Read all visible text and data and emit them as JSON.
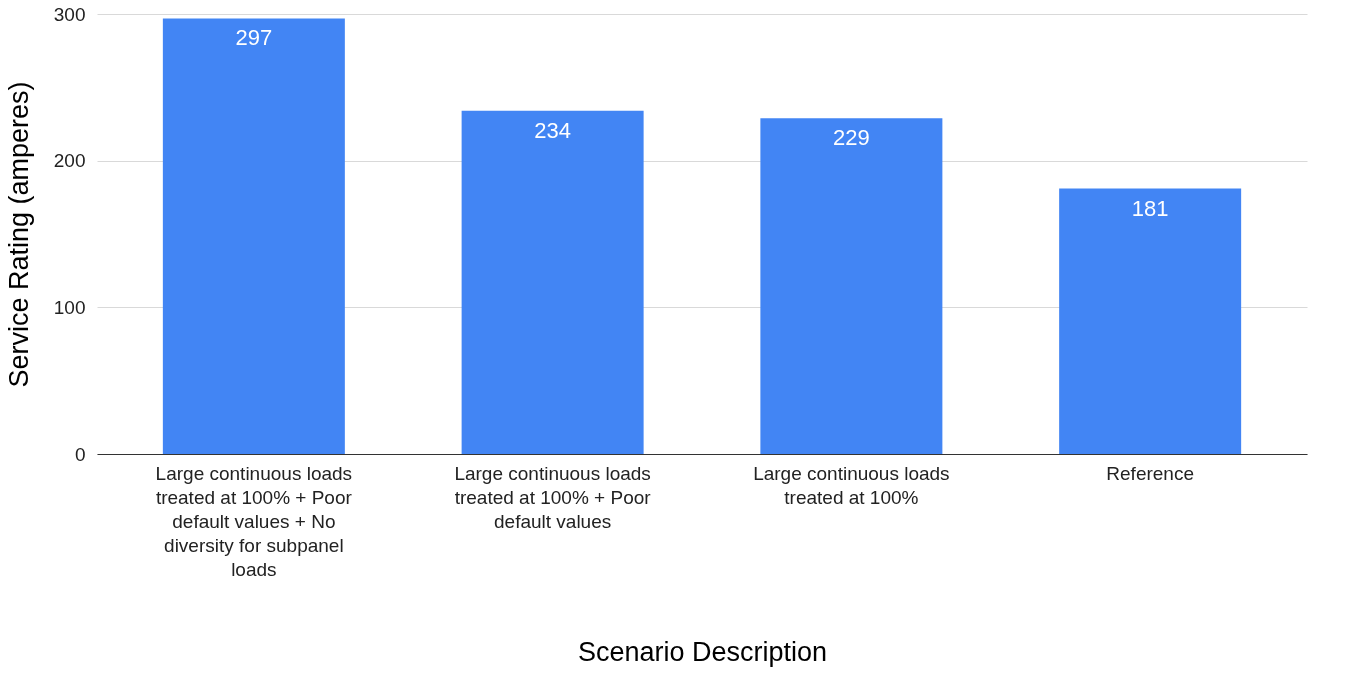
{
  "chart_data": {
    "type": "bar",
    "categories": [
      "Large continuous loads treated at 100% + Poor default values + No diversity for subpanel loads",
      "Large continuous loads treated at 100% + Poor default values",
      "Large continuous loads treated at 100%",
      "Reference"
    ],
    "values": [
      297,
      234,
      229,
      181
    ],
    "color": "#4285f4",
    "xlabel": "Scenario Description",
    "ylabel": "Service Rating (amperes)",
    "ylim": [
      0,
      300
    ],
    "yticks": [
      0,
      100,
      200,
      300
    ],
    "grid": "y",
    "data_labels": true
  }
}
